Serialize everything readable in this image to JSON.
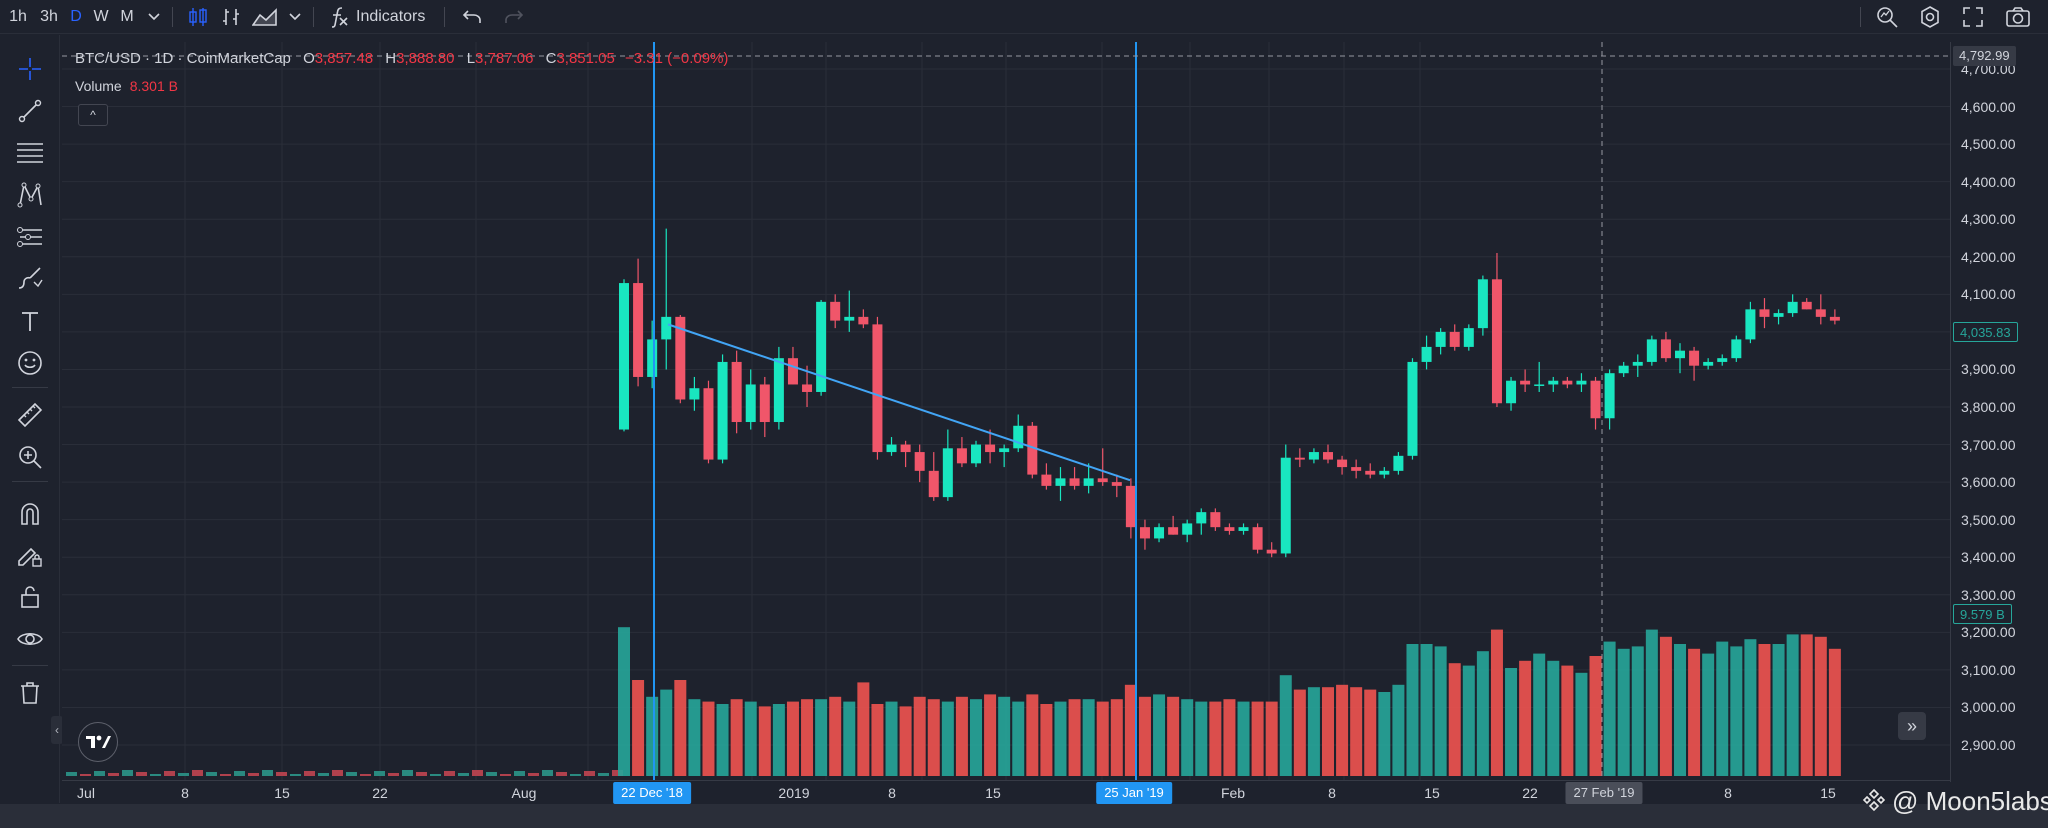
{
  "toolbar": {
    "intervals": [
      "1h",
      "3h",
      "D",
      "W",
      "M"
    ],
    "active_interval": "D",
    "indicators_label": "Indicators"
  },
  "legend": {
    "symbol": "BTC/USD · 1D · CoinMarketCap",
    "o_key": "O",
    "o_val": "3,857.48",
    "h_key": "H",
    "h_val": "3,888.80",
    "l_key": "L",
    "l_val": "3,787.06",
    "c_key": "C",
    "c_val": "3,851.05",
    "change": "−3.31 (−0.09%)",
    "volume_label": "Volume",
    "volume_val": "8.301 B",
    "toggle_glyph": "^"
  },
  "price_scale": {
    "ticks": [
      "4,700.00",
      "4,600.00",
      "4,500.00",
      "4,400.00",
      "4,300.00",
      "4,200.00",
      "4,100.00",
      "4,000.00",
      "3,900.00",
      "3,800.00",
      "3,700.00",
      "3,600.00",
      "3,500.00",
      "3,400.00",
      "3,300.00",
      "3,200.00",
      "3,100.00",
      "3,000.00",
      "2,900.00"
    ],
    "crosshair_price": "4,792.99",
    "last_price": "4,035.83",
    "last_volume": "9.579 B"
  },
  "time_scale": {
    "ticks": [
      "Jul",
      "8",
      "15",
      "22",
      "Aug",
      "2019",
      "8",
      "15",
      "Feb",
      "8",
      "15",
      "22",
      "8",
      "15"
    ],
    "marker_1": "22 Dec '18",
    "marker_2": "25 Jan '19",
    "crosshair_date": "27 Feb '19"
  },
  "colors": {
    "up": "#26a69a",
    "down": "#ef5350",
    "up_body": "#19e6c0",
    "down_body": "#f0566a",
    "marker": "#2196f3",
    "background": "#1e222d"
  },
  "watermark": "@ Moon5labs",
  "chart_data": {
    "type": "candlestick",
    "symbol": "BTC/USD",
    "interval": "1D",
    "ohlc": [
      [
        3740,
        4140,
        3735,
        4130
      ],
      [
        4130,
        4195,
        3855,
        3880
      ],
      [
        3880,
        4030,
        3850,
        3980
      ],
      [
        3980,
        4275,
        3900,
        4040
      ],
      [
        4040,
        4045,
        3810,
        3820
      ],
      [
        3820,
        3880,
        3790,
        3850
      ],
      [
        3850,
        3870,
        3650,
        3660
      ],
      [
        3660,
        3940,
        3650,
        3920
      ],
      [
        3920,
        3950,
        3730,
        3760
      ],
      [
        3760,
        3900,
        3740,
        3860
      ],
      [
        3860,
        3880,
        3720,
        3760
      ],
      [
        3760,
        3960,
        3740,
        3930
      ],
      [
        3930,
        3960,
        3860,
        3860
      ],
      [
        3860,
        3910,
        3800,
        3840
      ],
      [
        3840,
        4085,
        3830,
        4080
      ],
      [
        4080,
        4100,
        4010,
        4030
      ],
      [
        4030,
        4110,
        4000,
        4040
      ],
      [
        4040,
        4060,
        4010,
        4020
      ],
      [
        4020,
        4040,
        3660,
        3680
      ],
      [
        3680,
        3720,
        3670,
        3700
      ],
      [
        3700,
        3710,
        3640,
        3680
      ],
      [
        3680,
        3700,
        3600,
        3630
      ],
      [
        3630,
        3680,
        3550,
        3560
      ],
      [
        3560,
        3740,
        3550,
        3690
      ],
      [
        3690,
        3720,
        3640,
        3650
      ],
      [
        3650,
        3710,
        3640,
        3700
      ],
      [
        3700,
        3740,
        3650,
        3680
      ],
      [
        3680,
        3700,
        3640,
        3690
      ],
      [
        3690,
        3780,
        3680,
        3750
      ],
      [
        3750,
        3760,
        3610,
        3620
      ],
      [
        3620,
        3650,
        3580,
        3590
      ],
      [
        3590,
        3640,
        3550,
        3610
      ],
      [
        3610,
        3640,
        3580,
        3590
      ],
      [
        3590,
        3650,
        3570,
        3610
      ],
      [
        3610,
        3690,
        3590,
        3600
      ],
      [
        3600,
        3620,
        3560,
        3590
      ],
      [
        3590,
        3610,
        3450,
        3480
      ],
      [
        3480,
        3500,
        3420,
        3450
      ],
      [
        3450,
        3490,
        3440,
        3480
      ],
      [
        3480,
        3510,
        3460,
        3460
      ],
      [
        3460,
        3500,
        3440,
        3490
      ],
      [
        3490,
        3530,
        3460,
        3520
      ],
      [
        3520,
        3530,
        3470,
        3480
      ],
      [
        3480,
        3490,
        3460,
        3470
      ],
      [
        3470,
        3490,
        3460,
        3480
      ],
      [
        3480,
        3490,
        3410,
        3420
      ],
      [
        3420,
        3440,
        3400,
        3410
      ],
      [
        3410,
        3700,
        3400,
        3665
      ],
      [
        3665,
        3690,
        3640,
        3660
      ],
      [
        3660,
        3690,
        3650,
        3680
      ],
      [
        3680,
        3700,
        3650,
        3660
      ],
      [
        3660,
        3670,
        3620,
        3640
      ],
      [
        3640,
        3660,
        3610,
        3630
      ],
      [
        3630,
        3650,
        3610,
        3620
      ],
      [
        3620,
        3640,
        3610,
        3630
      ],
      [
        3630,
        3680,
        3620,
        3670
      ],
      [
        3670,
        3930,
        3660,
        3920
      ],
      [
        3920,
        3990,
        3900,
        3960
      ],
      [
        3960,
        4010,
        3940,
        4000
      ],
      [
        4000,
        4020,
        3950,
        3960
      ],
      [
        3960,
        4020,
        3950,
        4010
      ],
      [
        4010,
        4150,
        3990,
        4140
      ],
      [
        4140,
        4210,
        3800,
        3810
      ],
      [
        3810,
        3880,
        3790,
        3870
      ],
      [
        3870,
        3900,
        3840,
        3860
      ],
      [
        3860,
        3920,
        3840,
        3860
      ],
      [
        3860,
        3880,
        3840,
        3870
      ],
      [
        3870,
        3880,
        3850,
        3860
      ],
      [
        3860,
        3890,
        3840,
        3870
      ],
      [
        3870,
        3880,
        3740,
        3770
      ],
      [
        3770,
        3900,
        3740,
        3890
      ],
      [
        3890,
        3920,
        3880,
        3910
      ],
      [
        3910,
        3940,
        3880,
        3920
      ],
      [
        3920,
        3990,
        3910,
        3980
      ],
      [
        3980,
        4000,
        3920,
        3930
      ],
      [
        3930,
        3970,
        3890,
        3950
      ],
      [
        3950,
        3960,
        3870,
        3910
      ],
      [
        3910,
        3930,
        3900,
        3920
      ],
      [
        3920,
        3940,
        3910,
        3930
      ],
      [
        3930,
        3990,
        3920,
        3980
      ],
      [
        3980,
        4080,
        3970,
        4060
      ],
      [
        4060,
        4090,
        4010,
        4040
      ],
      [
        4040,
        4060,
        4020,
        4050
      ],
      [
        4050,
        4100,
        4040,
        4080
      ],
      [
        4080,
        4090,
        4060,
        4060
      ],
      [
        4060,
        4100,
        4020,
        4040
      ],
      [
        4040,
        4060,
        4020,
        4030
      ]
    ],
    "volume_scale_hint": "relative"
  }
}
